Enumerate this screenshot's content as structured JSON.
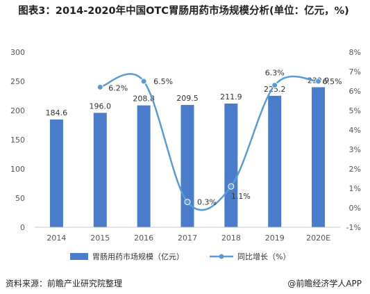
{
  "title": "图表3：2014-2020年中国OTC胃肠用药市场规模分析(单位：亿元，%)",
  "source": "资料来源：前瞻产业研究院整理",
  "credit": "@前瞻经济学人APP",
  "colors": {
    "bar": "#4a7cc9",
    "line": "#5b9bd5",
    "marker": "#5b9bd5"
  },
  "chart_data": {
    "type": "bar",
    "categories": [
      "2014",
      "2015",
      "2016",
      "2017",
      "2018",
      "2019",
      "2020E"
    ],
    "series": [
      {
        "name": "胃肠用药市场规模（亿元）",
        "type": "bar",
        "axis": "left",
        "values": [
          184.6,
          196.0,
          208.8,
          209.5,
          211.9,
          225.2,
          239.9
        ],
        "labels": [
          "184.6",
          "196.0",
          "208.8",
          "209.5",
          "211.9",
          "225.2",
          "239.9"
        ]
      },
      {
        "name": "同比增长（%）",
        "type": "line",
        "axis": "right",
        "smooth": true,
        "values": [
          null,
          6.2,
          6.5,
          0.3,
          1.1,
          6.3,
          6.5
        ],
        "labels": [
          "",
          "6.2%",
          "6.5%",
          "0.3%",
          "1.1%",
          "6.3%",
          "6.5%"
        ]
      }
    ],
    "y_left": {
      "ylim": [
        0,
        300
      ],
      "ticks": [
        "0",
        "50",
        "100",
        "150",
        "200",
        "250",
        "300"
      ]
    },
    "y_right": {
      "ylim": [
        -1,
        8
      ],
      "ticks": [
        "-1%",
        "0%",
        "1%",
        "2%",
        "3%",
        "4%",
        "5%",
        "6%",
        "7%",
        "8%"
      ]
    },
    "legend": "bottom",
    "grid": false
  }
}
